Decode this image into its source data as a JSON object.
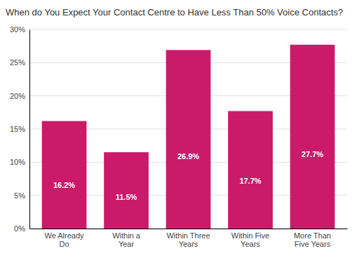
{
  "chart_data": {
    "type": "bar",
    "title": "When do You Expect Your Contact Centre to Have Less Than 50% Voice Contacts?",
    "categories": [
      "We Already\nDo",
      "Within a\nYear",
      "Within Three\nYears",
      "Within Five\nYears",
      "More Than\nFive Years"
    ],
    "values": [
      16.2,
      11.5,
      26.9,
      17.7,
      27.7
    ],
    "value_labels": [
      "16.2%",
      "11.5%",
      "26.9%",
      "17.7%",
      "27.7%"
    ],
    "data_labels": true,
    "color": "#CC1A6A",
    "ylim": [
      0,
      30
    ],
    "yticks": [
      {
        "value": 0,
        "label": "0%"
      },
      {
        "value": 5,
        "label": "5%"
      },
      {
        "value": 10,
        "label": "10%"
      },
      {
        "value": 15,
        "label": "15%"
      },
      {
        "value": 20,
        "label": "20%"
      },
      {
        "value": 25,
        "label": "25%"
      },
      {
        "value": 30,
        "label": "30%"
      }
    ],
    "grid": true
  }
}
